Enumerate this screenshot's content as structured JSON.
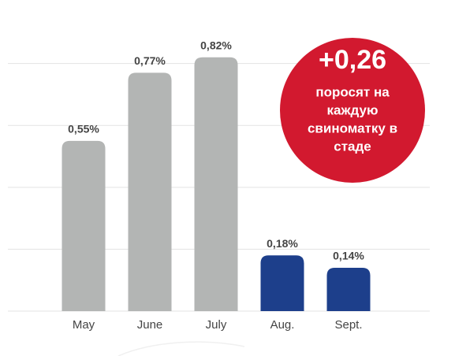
{
  "chart_data": {
    "type": "bar",
    "categories": [
      "May",
      "June",
      "July",
      "Aug.",
      "Sept."
    ],
    "values": [
      0.55,
      0.77,
      0.82,
      0.18,
      0.14
    ],
    "value_labels": [
      "0,55%",
      "0,77%",
      "0,82%",
      "0,18%",
      "0,14%"
    ],
    "colors": [
      "#b3b5b4",
      "#b3b5b4",
      "#b3b5b4",
      "#1d3f8b",
      "#1d3f8b"
    ],
    "ylim": [
      0,
      0.85
    ],
    "yticks": [
      0,
      0.2,
      0.4,
      0.6,
      0.8
    ],
    "grid": true,
    "annotation": {
      "value_text": "+0,26",
      "text_lines": [
        "поросят на",
        "каждую",
        "свиноматку в",
        "стаде"
      ],
      "color": "#d2192f"
    }
  }
}
